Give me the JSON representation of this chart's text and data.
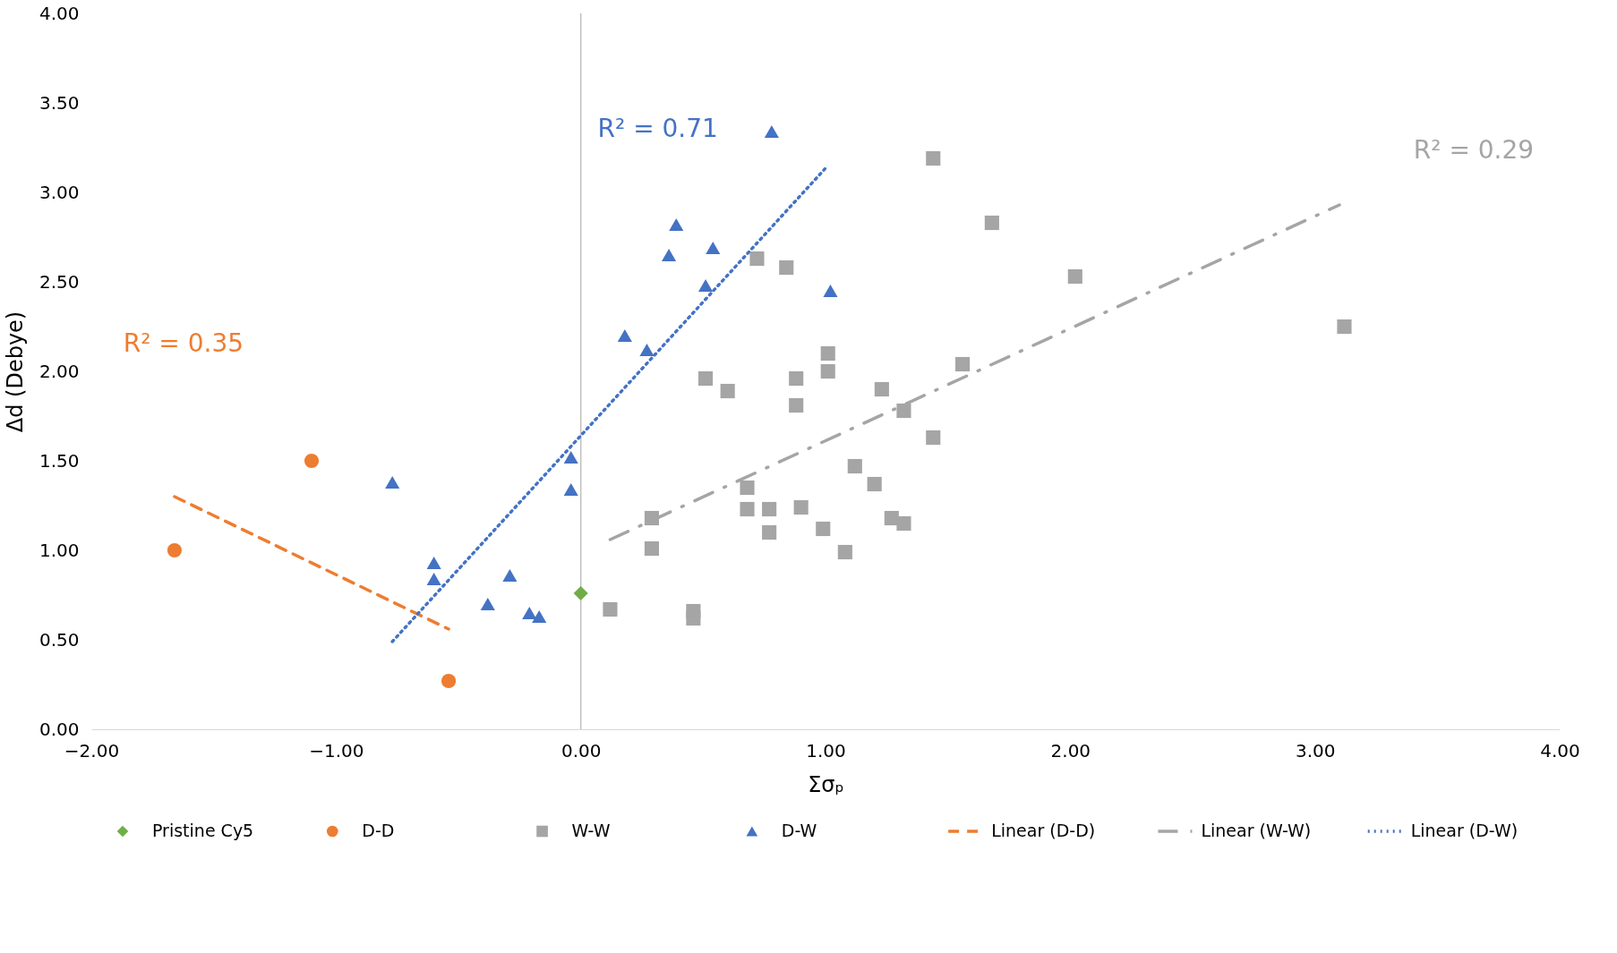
{
  "chart_data": {
    "type": "scatter",
    "xlabel": "Σσₚ",
    "ylabel": "Δd (Debye)",
    "xlim": [
      -2,
      4
    ],
    "ylim": [
      0,
      4
    ],
    "xticks": [
      {
        "value": -2,
        "label": "−2.00"
      },
      {
        "value": -1,
        "label": "−1.00"
      },
      {
        "value": 0,
        "label": "0.00"
      },
      {
        "value": 1,
        "label": "1.00"
      },
      {
        "value": 2,
        "label": "2.00"
      },
      {
        "value": 3,
        "label": "3.00"
      },
      {
        "value": 4,
        "label": "4.00"
      }
    ],
    "yticks": [
      {
        "value": 0,
        "label": "0.00"
      },
      {
        "value": 0.5,
        "label": "0.50"
      },
      {
        "value": 1,
        "label": "1.00"
      },
      {
        "value": 1.5,
        "label": "1.50"
      },
      {
        "value": 2,
        "label": "2.00"
      },
      {
        "value": 2.5,
        "label": "2.50"
      },
      {
        "value": 3,
        "label": "3.00"
      },
      {
        "value": 3.5,
        "label": "3.50"
      },
      {
        "value": 4,
        "label": "4.00"
      }
    ],
    "grid": false,
    "legend": "bottom",
    "ref_lines": [
      {
        "axis": "x",
        "value": 0,
        "color": "#bfbfbf"
      }
    ],
    "series": [
      {
        "name": "Pristine Cy5",
        "marker": "diamond",
        "color": "#70ad47",
        "x": [
          0
        ],
        "values": [
          0.76
        ]
      },
      {
        "name": "D-D",
        "marker": "circle",
        "color": "#ed7d31",
        "x": [
          -1.66,
          -1.1,
          -0.54
        ],
        "values": [
          1.0,
          1.5,
          0.27
        ]
      },
      {
        "name": "W-W",
        "marker": "square",
        "color": "#a5a5a5",
        "x": [
          0.12,
          0.29,
          0.29,
          0.46,
          0.46,
          0.51,
          0.6,
          0.72,
          0.84,
          0.68,
          0.68,
          0.77,
          0.77,
          0.88,
          0.88,
          0.9,
          0.99,
          1.01,
          1.01,
          1.08,
          1.12,
          1.2,
          1.23,
          1.27,
          1.32,
          1.32,
          1.44,
          1.44,
          1.56,
          1.68,
          2.02,
          3.12
        ],
        "values": [
          0.67,
          1.18,
          1.01,
          0.66,
          0.62,
          1.96,
          1.89,
          2.63,
          2.58,
          1.35,
          1.23,
          1.23,
          1.1,
          1.96,
          1.81,
          1.24,
          1.12,
          2.1,
          2.0,
          0.99,
          1.47,
          1.37,
          1.9,
          1.18,
          1.78,
          1.15,
          3.19,
          1.63,
          2.04,
          2.83,
          2.53,
          2.25
        ]
      },
      {
        "name": "D-W",
        "marker": "triangle",
        "color": "#4472c4",
        "x": [
          -0.77,
          -0.6,
          -0.6,
          -0.38,
          -0.29,
          -0.21,
          -0.17,
          -0.04,
          -0.04,
          0.18,
          0.27,
          0.36,
          0.39,
          0.51,
          0.54,
          0.78,
          1.02
        ],
        "values": [
          1.38,
          0.93,
          0.84,
          0.7,
          0.86,
          0.65,
          0.63,
          1.52,
          1.34,
          2.2,
          2.12,
          2.65,
          2.82,
          2.48,
          2.69,
          3.34,
          2.45
        ]
      },
      {
        "name": "Linear (D-D)",
        "type": "line",
        "line_style": "dashed",
        "color": "#ed7d31",
        "x": [
          -1.66,
          -0.54
        ],
        "values": [
          1.3,
          0.56
        ]
      },
      {
        "name": "Linear (W-W)",
        "type": "line",
        "line_style": "dashdot",
        "color": "#a5a5a5",
        "x": [
          0.12,
          3.1
        ],
        "values": [
          1.06,
          2.93
        ]
      },
      {
        "name": "Linear (D-W)",
        "type": "line",
        "line_style": "dotted",
        "color": "#4472c4",
        "x": [
          -0.77,
          1.01
        ],
        "values": [
          0.49,
          3.15
        ]
      }
    ],
    "annotations": [
      "R² = 0.35",
      "R² = 0.29",
      "R² = 0.71"
    ]
  }
}
